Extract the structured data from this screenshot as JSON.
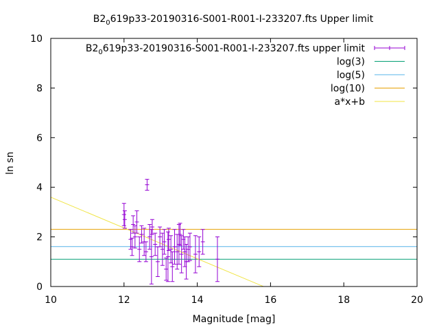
{
  "chart_data": {
    "type": "scatter",
    "title": "B2_0619p33-20190316-S001-R001-I-233207.fts Upper limit",
    "title_prefix": "B2",
    "title_subscript": "0",
    "title_suffix": "619p33-20190316-S001-R001-I-233207.fts Upper limit",
    "xlabel": "Magnitude [mag]",
    "ylabel": "ln sn",
    "xlim": [
      10,
      20
    ],
    "ylim": [
      0,
      10
    ],
    "x_ticks": [
      "10",
      "12",
      "14",
      "16",
      "18",
      "20"
    ],
    "y_ticks": [
      "0",
      "2",
      "4",
      "6",
      "8",
      "10"
    ],
    "grid": false,
    "legend_position": "top-right",
    "legend": [
      {
        "prefix": "B2",
        "sub": "0",
        "suffix": "619p33-20190316-S001-R001-I-233207.fts upper limit",
        "color": "#9400d3",
        "style": "errorbar"
      },
      {
        "prefix": "log(3)",
        "sub": "",
        "suffix": "",
        "color": "#009e73",
        "style": "line"
      },
      {
        "prefix": "log(5)",
        "sub": "",
        "suffix": "",
        "color": "#56b4e9",
        "style": "line"
      },
      {
        "prefix": "log(10)",
        "sub": "",
        "suffix": "",
        "color": "#e69f00",
        "style": "line"
      },
      {
        "prefix": "a*x+b",
        "sub": "",
        "suffix": "",
        "color": "#f0e442",
        "style": "line"
      }
    ],
    "hlines": [
      {
        "name": "log(3)",
        "y": 1.0986,
        "color": "#009e73"
      },
      {
        "name": "log(5)",
        "y": 1.6094,
        "color": "#56b4e9"
      },
      {
        "name": "log(10)",
        "y": 2.3026,
        "color": "#e69f00"
      }
    ],
    "fit_line": {
      "name": "a*x+b",
      "color": "#f0e442",
      "slope": -0.62,
      "intercept": 9.8
    },
    "series": [
      {
        "name": "B2_0619p33-20190316-S001-R001-I-233207.fts upper limit",
        "color": "#9400d3",
        "points": [
          {
            "x": 12.0,
            "y": 2.9,
            "err": 0.45
          },
          {
            "x": 12.02,
            "y": 2.7,
            "err": 0.35
          },
          {
            "x": 12.18,
            "y": 1.9,
            "err": 0.4
          },
          {
            "x": 12.22,
            "y": 1.6,
            "err": 0.35
          },
          {
            "x": 12.25,
            "y": 2.5,
            "err": 0.35
          },
          {
            "x": 12.3,
            "y": 2.0,
            "err": 0.45
          },
          {
            "x": 12.35,
            "y": 2.6,
            "err": 0.45
          },
          {
            "x": 12.42,
            "y": 1.5,
            "err": 0.5
          },
          {
            "x": 12.48,
            "y": 2.1,
            "err": 0.35
          },
          {
            "x": 12.55,
            "y": 1.8,
            "err": 0.55
          },
          {
            "x": 12.6,
            "y": 1.4,
            "err": 0.4
          },
          {
            "x": 12.63,
            "y": 4.1,
            "err": 0.22
          },
          {
            "x": 12.7,
            "y": 2.0,
            "err": 0.5
          },
          {
            "x": 12.75,
            "y": 1.2,
            "err": 1.1
          },
          {
            "x": 12.77,
            "y": 2.4,
            "err": 0.3
          },
          {
            "x": 12.85,
            "y": 1.7,
            "err": 0.45
          },
          {
            "x": 12.92,
            "y": 1.0,
            "err": 0.6
          },
          {
            "x": 12.98,
            "y": 2.0,
            "err": 0.4
          },
          {
            "x": 13.05,
            "y": 1.5,
            "err": 0.65
          },
          {
            "x": 13.1,
            "y": 1.8,
            "err": 0.5
          },
          {
            "x": 13.15,
            "y": 0.7,
            "err": 0.45
          },
          {
            "x": 13.2,
            "y": 1.2,
            "err": 1.0
          },
          {
            "x": 13.22,
            "y": 1.9,
            "err": 0.45
          },
          {
            "x": 13.28,
            "y": 1.5,
            "err": 0.55
          },
          {
            "x": 13.32,
            "y": 0.8,
            "err": 0.6
          },
          {
            "x": 13.38,
            "y": 1.6,
            "err": 0.7
          },
          {
            "x": 13.45,
            "y": 1.4,
            "err": 0.7
          },
          {
            "x": 13.5,
            "y": 1.7,
            "err": 0.8
          },
          {
            "x": 13.53,
            "y": 2.1,
            "err": 0.45
          },
          {
            "x": 13.57,
            "y": 1.3,
            "err": 0.75
          },
          {
            "x": 13.62,
            "y": 1.9,
            "err": 0.4
          },
          {
            "x": 13.66,
            "y": 1.4,
            "err": 0.6
          },
          {
            "x": 13.7,
            "y": 1.0,
            "err": 0.7
          },
          {
            "x": 13.75,
            "y": 1.5,
            "err": 0.5
          },
          {
            "x": 13.8,
            "y": 1.6,
            "err": 0.55
          },
          {
            "x": 13.95,
            "y": 1.3,
            "err": 0.75
          },
          {
            "x": 14.05,
            "y": 1.4,
            "err": 0.6
          },
          {
            "x": 14.15,
            "y": 1.8,
            "err": 0.5
          },
          {
            "x": 14.55,
            "y": 1.1,
            "err": 0.9
          }
        ]
      }
    ]
  }
}
